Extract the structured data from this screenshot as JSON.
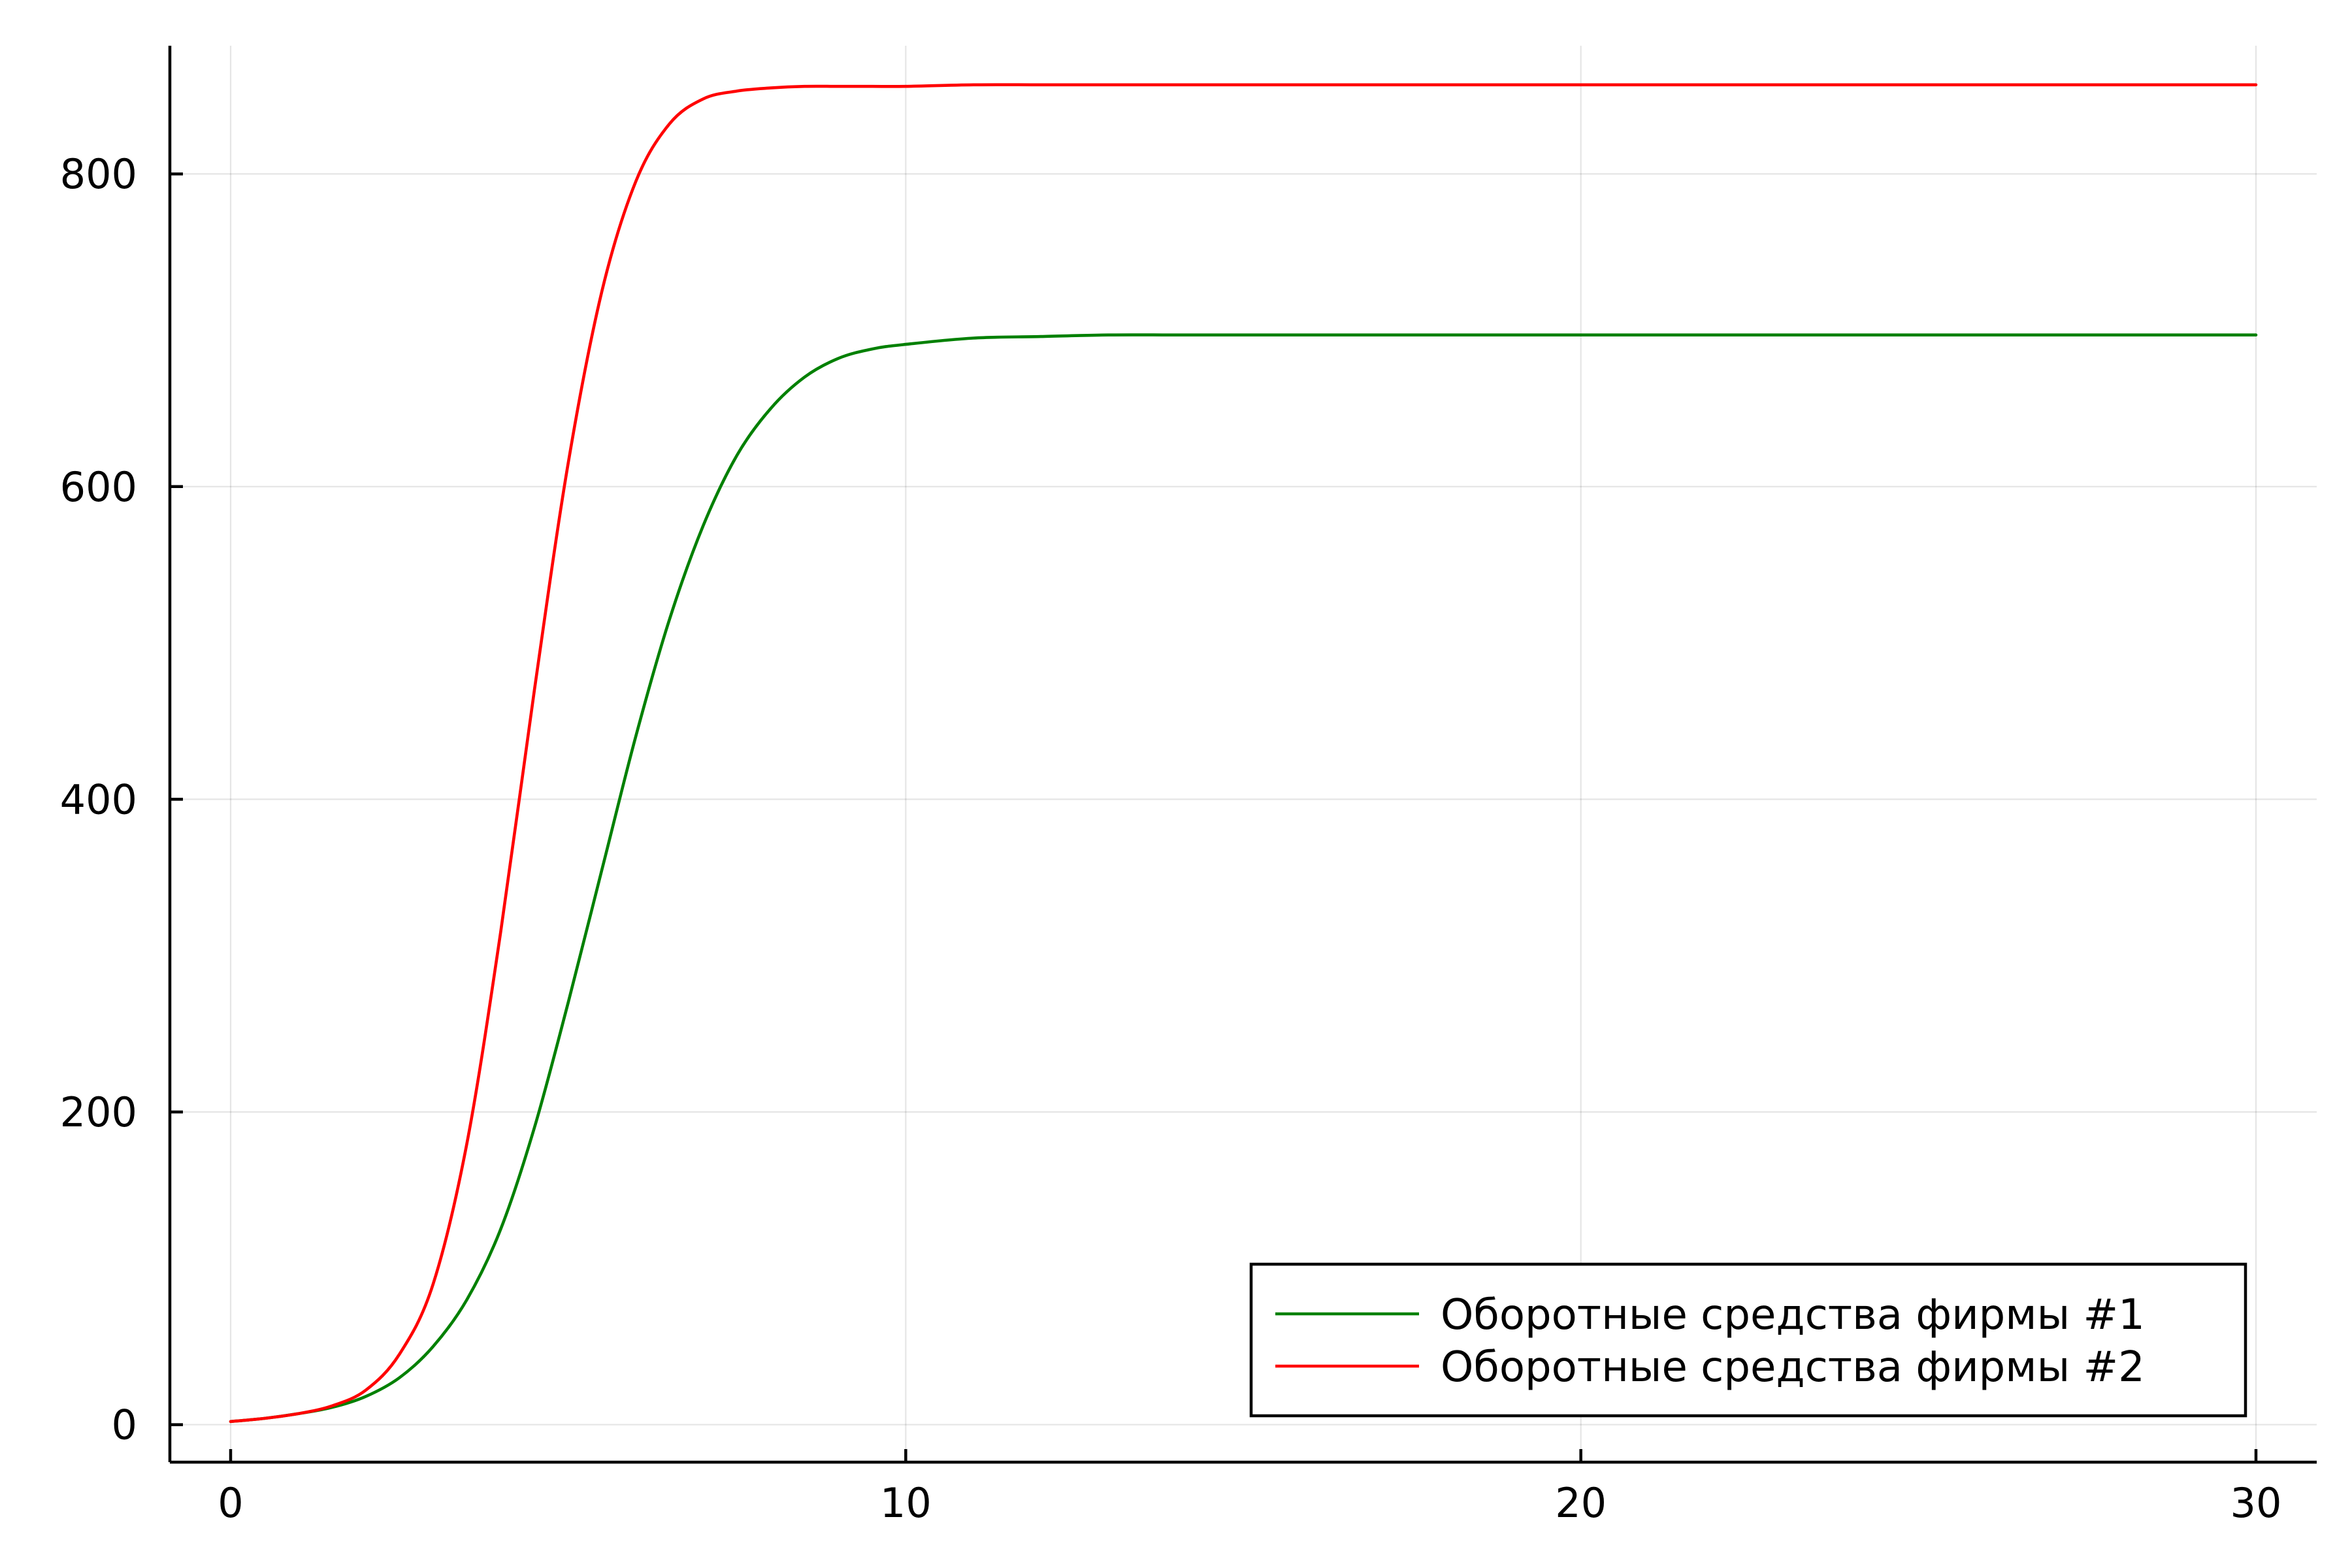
{
  "chart_data": {
    "type": "line",
    "title": "",
    "xlabel": "",
    "ylabel": "",
    "xlim": [
      -0.9,
      30.9
    ],
    "ylim": [
      -24,
      882
    ],
    "xticks": [
      0,
      10,
      20,
      30
    ],
    "yticks": [
      0,
      200,
      400,
      600,
      800
    ],
    "xtick_labels": [
      "0",
      "10",
      "20",
      "30"
    ],
    "ytick_labels": [
      "0",
      "200",
      "400",
      "600",
      "800"
    ],
    "grid": true,
    "legend_position": "bottom-right",
    "series": [
      {
        "name": "Оборотные средства фирмы #1",
        "color": "#008000",
        "x": [
          0,
          0.5,
          1,
          1.5,
          2,
          2.5,
          3,
          3.5,
          4,
          4.5,
          5,
          5.5,
          6,
          6.5,
          7,
          7.5,
          8,
          8.5,
          9,
          9.5,
          10,
          11,
          12,
          13,
          14,
          15,
          17,
          20,
          25,
          30
        ],
        "y": [
          2,
          4,
          7,
          11,
          18,
          30,
          50,
          80,
          125,
          190,
          270,
          355,
          440,
          515,
          575,
          620,
          650,
          670,
          682,
          688,
          691,
          695,
          696,
          697,
          697,
          697,
          697,
          697,
          697,
          697
        ]
      },
      {
        "name": "Оборотные средства фирмы #2",
        "color": "#ff0000",
        "x": [
          0,
          0.5,
          1,
          1.5,
          2,
          2.5,
          3,
          3.5,
          4,
          4.5,
          5,
          5.5,
          6,
          6.5,
          7,
          7.5,
          8,
          8.5,
          9,
          9.5,
          10,
          11,
          12,
          13,
          14,
          15,
          17,
          20,
          25,
          30
        ],
        "y": [
          2,
          4,
          7,
          12,
          22,
          45,
          90,
          180,
          315,
          470,
          615,
          725,
          795,
          832,
          848,
          853,
          855,
          856,
          856,
          856,
          856,
          857,
          857,
          857,
          857,
          857,
          857,
          857,
          857,
          857
        ]
      }
    ]
  }
}
